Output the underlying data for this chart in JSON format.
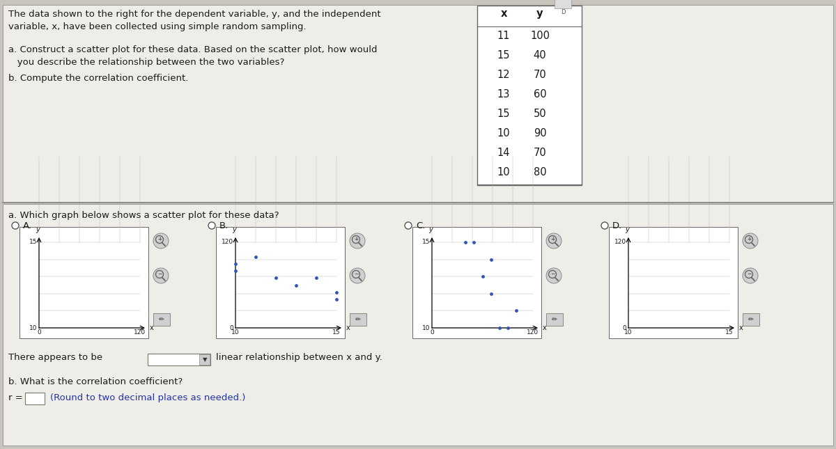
{
  "bg_color": "#c8c4bc",
  "panel_color": "#eeede8",
  "x_data": [
    11,
    15,
    12,
    13,
    15,
    10,
    14,
    10
  ],
  "y_data": [
    100,
    40,
    70,
    60,
    50,
    90,
    70,
    80
  ],
  "text_color": "#1a1a1a",
  "blue_text": "#2233aa",
  "title_line1": "The data shown to the right for the dependent variable, y, and the independent",
  "title_line2": "variable, x, have been collected using simple random sampling.",
  "question_a_line1": "a. Construct a scatter plot for these data. Based on the scatter plot, how would",
  "question_a_line2": "   you describe the relationship between the two variables?",
  "question_b": "b. Compute the correlation coefficient.",
  "question_a2": "a. Which graph below shows a scatter plot for these data?",
  "table_data": [
    [
      11,
      100
    ],
    [
      15,
      40
    ],
    [
      12,
      70
    ],
    [
      13,
      60
    ],
    [
      15,
      50
    ],
    [
      10,
      90
    ],
    [
      14,
      70
    ],
    [
      10,
      80
    ]
  ],
  "scatter_dot_color": "#3355bb",
  "option_labels": [
    "A.",
    "B.",
    "C.",
    "D."
  ],
  "answer_line": "There appears to be",
  "answer_suffix": "linear relationship between x and y.",
  "corr_question": "b. What is the correlation coefficient?",
  "corr_label": "r =",
  "corr_note": "(Round to two decimal places as needed.)"
}
